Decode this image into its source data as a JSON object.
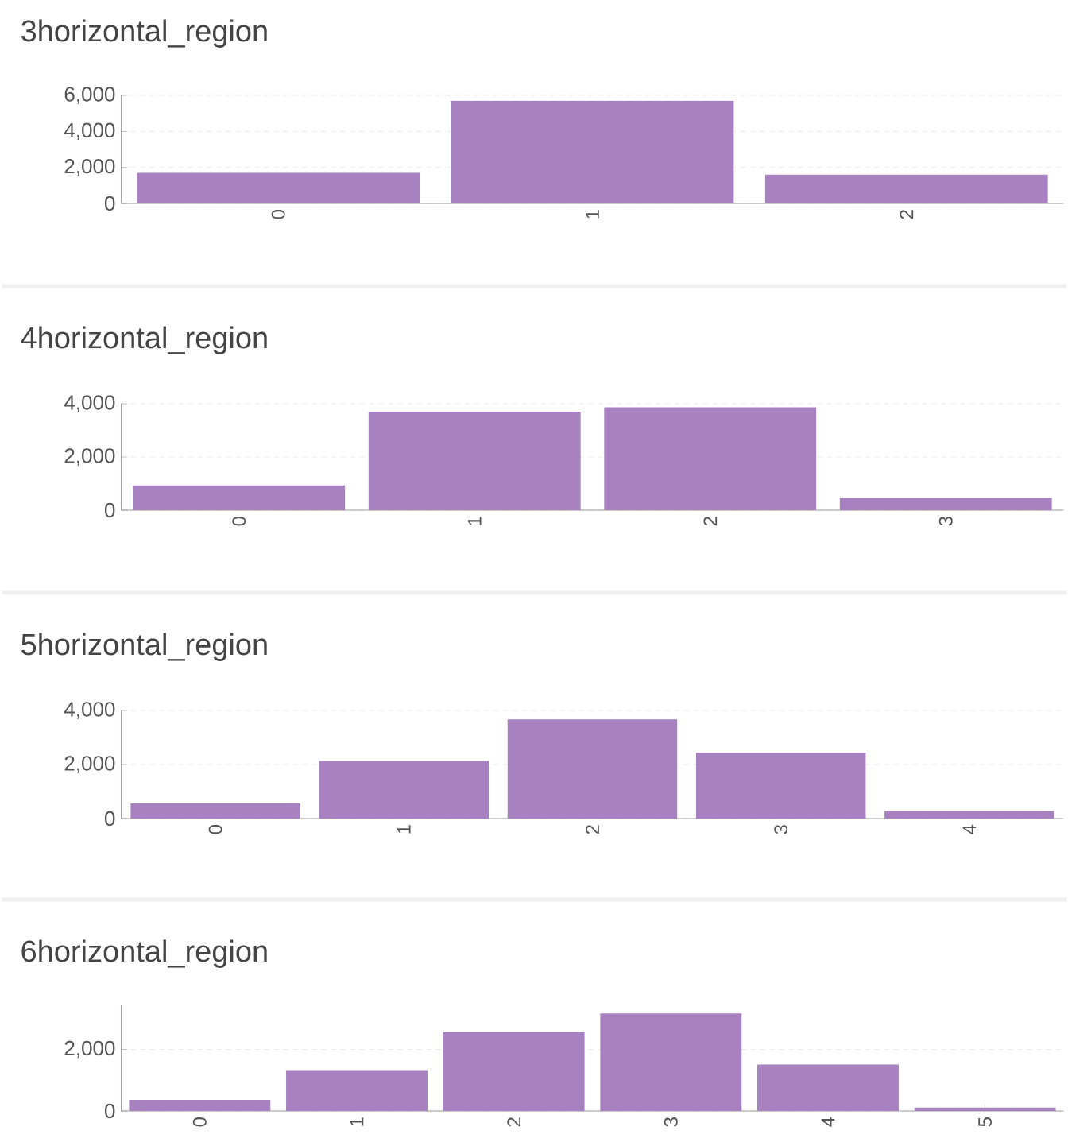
{
  "chart_data": [
    {
      "type": "bar",
      "title": "3horizontal_region",
      "categories": [
        "0",
        "1",
        "2"
      ],
      "values": [
        1700,
        5700,
        1600
      ],
      "color": "#a882c0",
      "ylim": [
        0,
        6000
      ],
      "yticks": [
        {
          "value": 0,
          "label": "0"
        },
        {
          "value": 2000,
          "label": "2,000"
        },
        {
          "value": 4000,
          "label": "4,000"
        },
        {
          "value": 6000,
          "label": "6,000"
        }
      ],
      "grid": "y"
    },
    {
      "type": "bar",
      "title": "4horizontal_region",
      "categories": [
        "0",
        "1",
        "2",
        "3"
      ],
      "values": [
        930,
        3700,
        3870,
        460
      ],
      "color": "#a882c0",
      "ylim": [
        0,
        4000
      ],
      "yticks": [
        {
          "value": 0,
          "label": "0"
        },
        {
          "value": 2000,
          "label": "2,000"
        },
        {
          "value": 4000,
          "label": "4,000"
        }
      ],
      "grid": "y"
    },
    {
      "type": "bar",
      "title": "5horizontal_region",
      "categories": [
        "0",
        "1",
        "2",
        "3",
        "4"
      ],
      "values": [
        560,
        2130,
        3670,
        2440,
        280
      ],
      "color": "#a882c0",
      "ylim": [
        0,
        4000
      ],
      "yticks": [
        {
          "value": 0,
          "label": "0"
        },
        {
          "value": 2000,
          "label": "2,000"
        },
        {
          "value": 4000,
          "label": "4,000"
        }
      ],
      "grid": "y"
    },
    {
      "type": "bar",
      "title": "6horizontal_region",
      "categories": [
        "0",
        "1",
        "2",
        "3",
        "4",
        "5"
      ],
      "values": [
        360,
        1330,
        2560,
        3170,
        1510,
        110
      ],
      "color": "#a882c0",
      "ylim": [
        0,
        3460
      ],
      "yticks": [
        {
          "value": 0,
          "label": "0"
        },
        {
          "value": 2000,
          "label": "2,000"
        }
      ],
      "grid": "y"
    }
  ]
}
